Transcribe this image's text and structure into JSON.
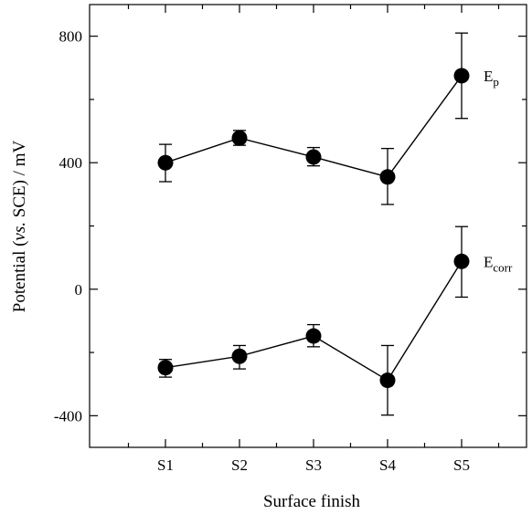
{
  "chart_data": {
    "type": "scatter",
    "xlabel": "Surface finish",
    "ylabel_parts": [
      {
        "text": "Potential (",
        "italic": false
      },
      {
        "text": "vs.",
        "italic": true
      },
      {
        "text": " SCE) / mV",
        "italic": false
      }
    ],
    "categories": [
      "S1",
      "S2",
      "S3",
      "S4",
      "S5"
    ],
    "ylim": [
      -500,
      900
    ],
    "yticks_major": [
      -400,
      0,
      400,
      800
    ],
    "yticks_minor": [
      -200,
      200,
      600
    ],
    "grid": false,
    "series": [
      {
        "name_main": "E",
        "name_sub": "p",
        "values": [
          400,
          478,
          418,
          355,
          675
        ],
        "err_upper": [
          458,
          502,
          448,
          445,
          810
        ],
        "err_lower": [
          340,
          455,
          390,
          268,
          540
        ]
      },
      {
        "name_main": "E",
        "name_sub": "corr",
        "values": [
          -248,
          -212,
          -148,
          -288,
          88
        ],
        "err_upper": [
          -222,
          -178,
          -112,
          -178,
          198
        ],
        "err_lower": [
          -278,
          -252,
          -182,
          -398,
          -25
        ]
      }
    ]
  }
}
